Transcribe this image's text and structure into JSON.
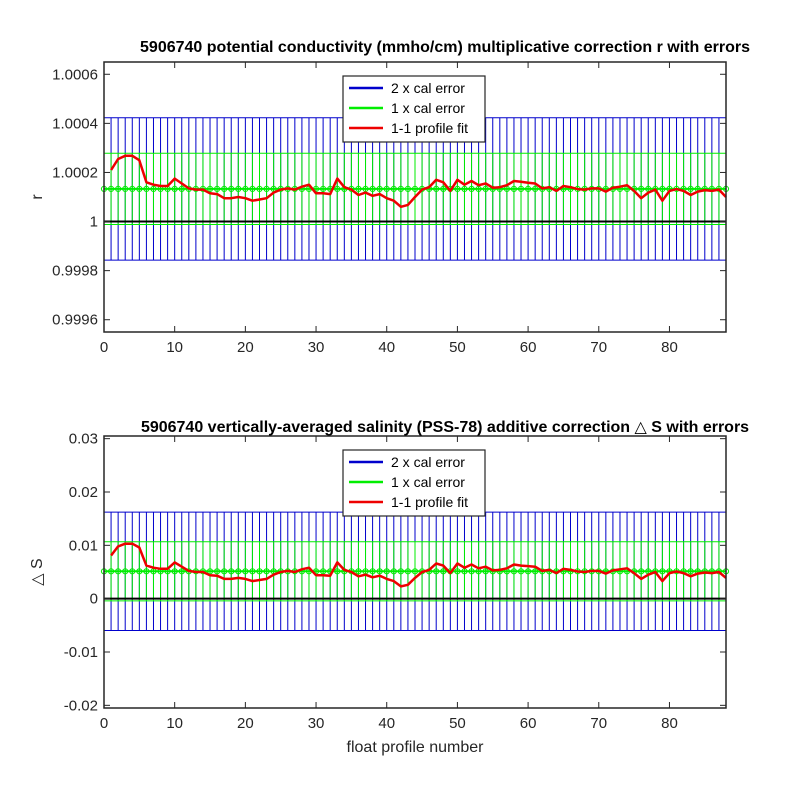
{
  "colors": {
    "two_x": "#0000cc",
    "one_x": "#00ee00",
    "fit": "#ee0000",
    "zero_line": "#000000",
    "axes": "#262626"
  },
  "chart_data": [
    {
      "type": "line",
      "title": "5906740 potential conductivity (mmho/cm) multiplicative correction r with errors",
      "xlabel": "",
      "ylabel": "r",
      "xlim": [
        0,
        88
      ],
      "ylim": [
        0.99955,
        1.00065
      ],
      "xticks": [
        0,
        10,
        20,
        30,
        40,
        50,
        60,
        70,
        80
      ],
      "yticks": [
        0.9996,
        0.9998,
        1,
        1.0002,
        1.0004,
        1.0006
      ],
      "yticklabels": [
        "0.9996",
        "0.9998",
        "1",
        "1.0002",
        "1.0004",
        "1.0006"
      ],
      "legend_position": "top-center",
      "reference_value": 1,
      "center_value": 1.000133,
      "two_x_half_width": 0.00029,
      "one_x_half_width": 0.000145,
      "series": [
        {
          "name": "2 x cal error",
          "kind": "errorbar"
        },
        {
          "name": "1 x cal error",
          "kind": "errorbar"
        },
        {
          "name": "1-1 profile fit",
          "kind": "line",
          "x": [
            1,
            2,
            3,
            4,
            5,
            6,
            7,
            8,
            9,
            10,
            11,
            12,
            13,
            14,
            15,
            16,
            17,
            18,
            19,
            20,
            21,
            22,
            23,
            24,
            25,
            26,
            27,
            28,
            29,
            30,
            31,
            32,
            33,
            34,
            35,
            36,
            37,
            38,
            39,
            40,
            41,
            42,
            43,
            44,
            45,
            46,
            47,
            48,
            49,
            50,
            51,
            52,
            53,
            54,
            55,
            56,
            57,
            58,
            59,
            60,
            61,
            62,
            63,
            64,
            65,
            66,
            67,
            68,
            69,
            70,
            71,
            72,
            73,
            74,
            75,
            76,
            77,
            78,
            79,
            80,
            81,
            82,
            83,
            84,
            85,
            86,
            87,
            88
          ],
          "y": [
            1.00021,
            1.000255,
            1.000268,
            1.000268,
            1.00025,
            1.00016,
            1.00015,
            1.000145,
            1.000145,
            1.000175,
            1.000155,
            1.000135,
            1.00013,
            1.00013,
            1.000115,
            1.000112,
            1.000095,
            1.000095,
            1.0001,
            1.000095,
            1.000085,
            1.00009,
            1.000095,
            1.000118,
            1.00013,
            1.000135,
            1.00013,
            1.000142,
            1.00015,
            1.000115,
            1.000115,
            1.000112,
            1.000175,
            1.00014,
            1.00013,
            1.000108,
            1.000118,
            1.000105,
            1.000112,
            1.000095,
            1.000085,
            1.00006,
            1.000068,
            1.0001,
            1.00013,
            1.00014,
            1.00017,
            1.00016,
            1.000125,
            1.00017,
            1.00015,
            1.000165,
            1.000148,
            1.000155,
            1.000138,
            1.00014,
            1.000148,
            1.000165,
            1.000162,
            1.000158,
            1.000155,
            1.000135,
            1.00014,
            1.000125,
            1.000145,
            1.00014,
            1.000132,
            1.00013,
            1.000135,
            1.000135,
            1.000122,
            1.000138,
            1.000142,
            1.000148,
            1.000125,
            1.000095,
            1.000118,
            1.00013,
            1.000085,
            1.000125,
            1.000132,
            1.000125,
            1.000108,
            1.000122,
            1.000128,
            1.000125,
            1.00013,
            1.0001
          ]
        }
      ]
    },
    {
      "type": "line",
      "title": "5906740 vertically-averaged salinity (PSS-78) additive correction △ S with errors",
      "xlabel": "float profile number",
      "ylabel": "△ S",
      "xlim": [
        0,
        88
      ],
      "ylim": [
        -0.0205,
        0.0305
      ],
      "xticks": [
        0,
        10,
        20,
        30,
        40,
        50,
        60,
        70,
        80
      ],
      "yticks": [
        -0.02,
        -0.01,
        0,
        0.01,
        0.02,
        0.03
      ],
      "yticklabels": [
        "-0.02",
        "-0.01",
        "0",
        "0.01",
        "0.02",
        "0.03"
      ],
      "legend_position": "top-center",
      "reference_value": 0,
      "center_value": 0.00513,
      "two_x_half_width": 0.0111,
      "one_x_half_width": 0.00555,
      "series": [
        {
          "name": "2 x cal error",
          "kind": "errorbar"
        },
        {
          "name": "1 x cal error",
          "kind": "errorbar"
        },
        {
          "name": "1-1 profile fit",
          "kind": "line",
          "x": [
            1,
            2,
            3,
            4,
            5,
            6,
            7,
            8,
            9,
            10,
            11,
            12,
            13,
            14,
            15,
            16,
            17,
            18,
            19,
            20,
            21,
            22,
            23,
            24,
            25,
            26,
            27,
            28,
            29,
            30,
            31,
            32,
            33,
            34,
            35,
            36,
            37,
            38,
            39,
            40,
            41,
            42,
            43,
            44,
            45,
            46,
            47,
            48,
            49,
            50,
            51,
            52,
            53,
            54,
            55,
            56,
            57,
            58,
            59,
            60,
            61,
            62,
            63,
            64,
            65,
            66,
            67,
            68,
            69,
            70,
            71,
            72,
            73,
            74,
            75,
            76,
            77,
            78,
            79,
            80,
            81,
            82,
            83,
            84,
            85,
            86,
            87,
            88
          ],
          "y": [
            0.0081,
            0.0098,
            0.0103,
            0.0103,
            0.0096,
            0.0062,
            0.0058,
            0.0056,
            0.0056,
            0.0068,
            0.006,
            0.0052,
            0.005,
            0.005,
            0.0044,
            0.0043,
            0.0037,
            0.0037,
            0.0039,
            0.0037,
            0.0033,
            0.0035,
            0.0037,
            0.0045,
            0.005,
            0.0052,
            0.005,
            0.0055,
            0.0058,
            0.0044,
            0.0044,
            0.0043,
            0.0068,
            0.0054,
            0.005,
            0.0042,
            0.0045,
            0.004,
            0.0043,
            0.0037,
            0.0033,
            0.0023,
            0.0026,
            0.0039,
            0.005,
            0.0054,
            0.0066,
            0.0062,
            0.0048,
            0.0066,
            0.0058,
            0.0064,
            0.0057,
            0.006,
            0.0053,
            0.0054,
            0.0057,
            0.0064,
            0.0062,
            0.0061,
            0.006,
            0.0052,
            0.0054,
            0.0048,
            0.0056,
            0.0054,
            0.0051,
            0.005,
            0.0052,
            0.0052,
            0.0047,
            0.0053,
            0.0055,
            0.0057,
            0.0048,
            0.0037,
            0.0045,
            0.005,
            0.0033,
            0.0048,
            0.0051,
            0.0048,
            0.0042,
            0.0047,
            0.0049,
            0.0048,
            0.005,
            0.0039
          ]
        }
      ]
    }
  ]
}
